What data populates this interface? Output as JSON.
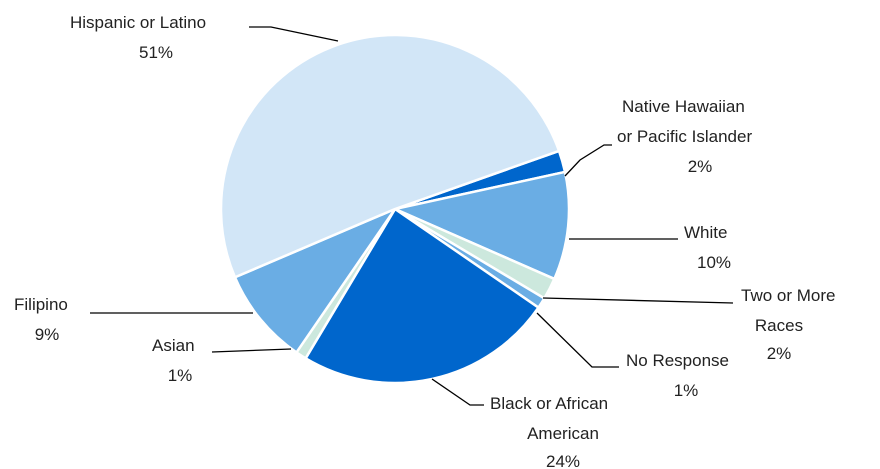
{
  "chart_data": {
    "type": "pie",
    "title": "",
    "start": "clockwise from the boundary between Hispanic or Latino and Native Hawaiian or Pacific Islander",
    "slices": [
      {
        "label": "Native Hawaiian or Pacific Islander",
        "value": 2,
        "display": "2%",
        "color": "#0066CC"
      },
      {
        "label": "White",
        "value": 10,
        "display": "10%",
        "color": "#6AADE4"
      },
      {
        "label": "Two or More Races",
        "value": 2,
        "display": "2%",
        "color": "#CCE8DD"
      },
      {
        "label": "No Response",
        "value": 1,
        "display": "1%",
        "color": "#6AADE4"
      },
      {
        "label": "Black or African American",
        "value": 24,
        "display": "24%",
        "color": "#0066CC"
      },
      {
        "label": "Asian",
        "value": 1,
        "display": "1%",
        "color": "#CCE8DD"
      },
      {
        "label": "Filipino",
        "value": 9,
        "display": "9%",
        "color": "#6AADE4"
      },
      {
        "label": "Hispanic or Latino",
        "value": 51,
        "display": "51%",
        "color": "#D2E6F7"
      }
    ]
  }
}
